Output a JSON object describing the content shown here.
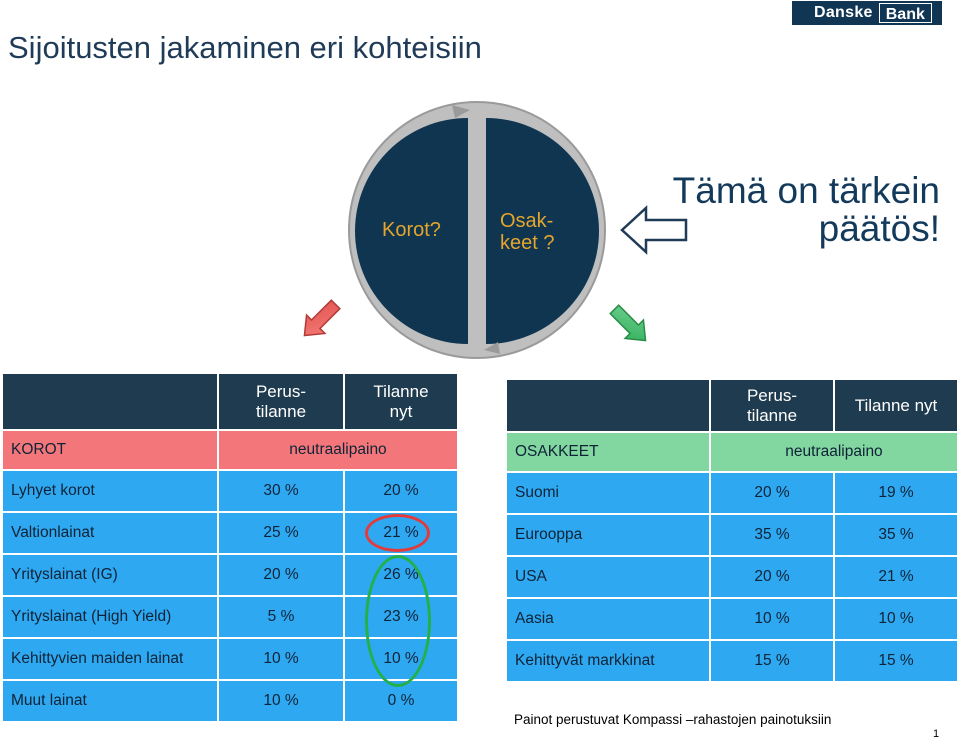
{
  "title": "Sijoitusten jakaminen eri kohteisiin",
  "logo": {
    "word1": "Danske",
    "word2": "Bank"
  },
  "circle": {
    "left_label": "Korot?",
    "right_label_line1": "Osak-",
    "right_label_line2": "keet ?"
  },
  "callout": {
    "line1": "Tämä on tärkein",
    "line2": "päätös!"
  },
  "colors": {
    "navy": "#1f3b4f",
    "blue": "#2fa8f2",
    "red": "#f3777a",
    "green": "#82d6a0",
    "orange_text": "#e5a52c"
  },
  "korot_table": {
    "header": {
      "col1_line1": "Perus-",
      "col1_line2": "tilanne",
      "col2_line1": "Tilanne",
      "col2_line2": "nyt"
    },
    "section": {
      "label": "KOROT",
      "value": "neutraalipaino"
    },
    "rows": [
      {
        "label": "Lyhyet korot",
        "base": "30 %",
        "now": "20 %"
      },
      {
        "label": "Valtionlainat",
        "base": "25 %",
        "now": "21 %"
      },
      {
        "label": "Yrityslainat (IG)",
        "base": "20 %",
        "now": "26 %"
      },
      {
        "label": "Yrityslainat (High Yield)",
        "base": "5 %",
        "now": "23 %"
      },
      {
        "label": "Kehittyvien maiden lainat",
        "base": "10 %",
        "now": "10 %"
      },
      {
        "label": "Muut lainat",
        "base": "10 %",
        "now": "0 %"
      }
    ]
  },
  "osakkeet_table": {
    "header": {
      "col1_line1": "Perus-",
      "col1_line2": "tilanne",
      "col2": "Tilanne nyt"
    },
    "section": {
      "label": "OSAKKEET",
      "value": "neutraalipaino"
    },
    "rows": [
      {
        "label": "Suomi",
        "base": "20 %",
        "now": "19 %"
      },
      {
        "label": "Eurooppa",
        "base": "35 %",
        "now": "35 %"
      },
      {
        "label": "USA",
        "base": "20 %",
        "now": "21 %"
      },
      {
        "label": "Aasia",
        "base": "10 %",
        "now": "10 %"
      },
      {
        "label": "Kehittyvät markkinat",
        "base": "15 %",
        "now": "15 %"
      }
    ]
  },
  "footnote": "Painot perustuvat Kompassi –rahastojen painotuksiin",
  "page_number": "1"
}
